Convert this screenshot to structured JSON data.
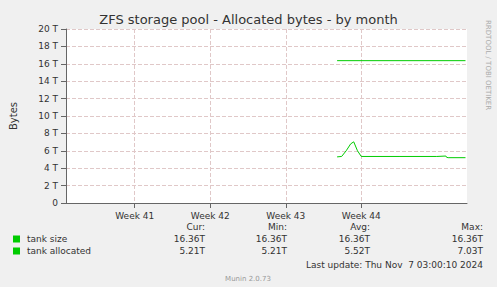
{
  "chart_data": {
    "type": "line",
    "title": "ZFS storage pool - Allocated bytes - by month",
    "y_label": "Bytes",
    "xlim": [
      40.09,
      45.4
    ],
    "xticks": [
      {
        "value": 41,
        "label": "Week 41"
      },
      {
        "value": 42,
        "label": "Week 42"
      },
      {
        "value": 43,
        "label": "Week 43"
      },
      {
        "value": 44,
        "label": "Week 44"
      }
    ],
    "ylim": [
      0,
      20
    ],
    "yticks": [
      0,
      {
        "value": 2,
        "label": "2 T"
      },
      {
        "value": 4,
        "label": "4 T"
      },
      {
        "value": 6,
        "label": "6 T"
      },
      {
        "value": 8,
        "label": "8 T"
      },
      {
        "value": 10,
        "label": "10 T"
      },
      {
        "value": 12,
        "label": "12 T"
      },
      {
        "value": 14,
        "label": "14 T"
      },
      {
        "value": 16,
        "label": "16 T"
      },
      {
        "value": 18,
        "label": "18 T"
      },
      {
        "value": 20,
        "label": "20 T"
      }
    ],
    "grid": true,
    "stats_columns": [
      "Cur:",
      "Min:",
      "Avg:",
      "Max:"
    ],
    "series": [
      {
        "name": "tank size",
        "color": "#00cc00",
        "x": [
          43.68,
          45.38
        ],
        "values": [
          16.36,
          16.36
        ],
        "stats": [
          "16.36T",
          "16.36T",
          "16.36T",
          "16.36T"
        ]
      },
      {
        "name": "tank allocated",
        "color": "#00cc00",
        "x": [
          43.68,
          43.74,
          43.8,
          43.86,
          43.9,
          43.95,
          44.0,
          44.5,
          45.0,
          45.12,
          45.13,
          45.15,
          45.38
        ],
        "values": [
          5.3,
          5.35,
          6.0,
          6.8,
          7.03,
          6.0,
          5.35,
          5.35,
          5.35,
          5.4,
          5.25,
          5.21,
          5.21
        ],
        "stats": [
          "5.21T",
          "5.21T",
          "5.52T",
          "7.03T"
        ]
      }
    ],
    "footer": "Last update: Thu Nov  7 03:00:10 2024",
    "credit": "Munin 2.0.73",
    "side_text": "RRDTOOL / TOBI OETIKER"
  }
}
